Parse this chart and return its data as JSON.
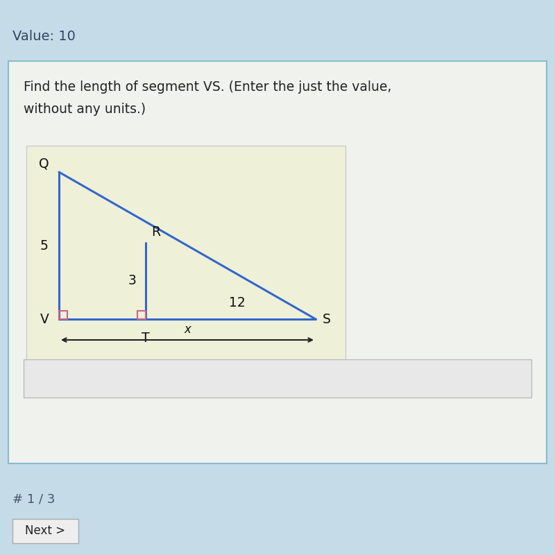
{
  "bg_outer": "#c5dce8",
  "bg_card": "#f0f2ee",
  "bg_diagram": "#eef0d8",
  "bg_answer": "#e8e8e8",
  "value_text": "Value: 10",
  "question_line1": "Find the length of segment VS. (Enter the just the value,",
  "question_line2": "without any units.)",
  "footer_text": "# 1 / 3",
  "button_text": "Next >",
  "label_Q": "Q",
  "label_R": "R",
  "label_V": "V",
  "label_T": "T",
  "label_S": "S",
  "label_5": "5",
  "label_3": "3",
  "label_12": "12",
  "label_x": "x",
  "line_color": "#3366cc",
  "right_angle_color": "#cc6688",
  "card_border": "#88bbcc"
}
